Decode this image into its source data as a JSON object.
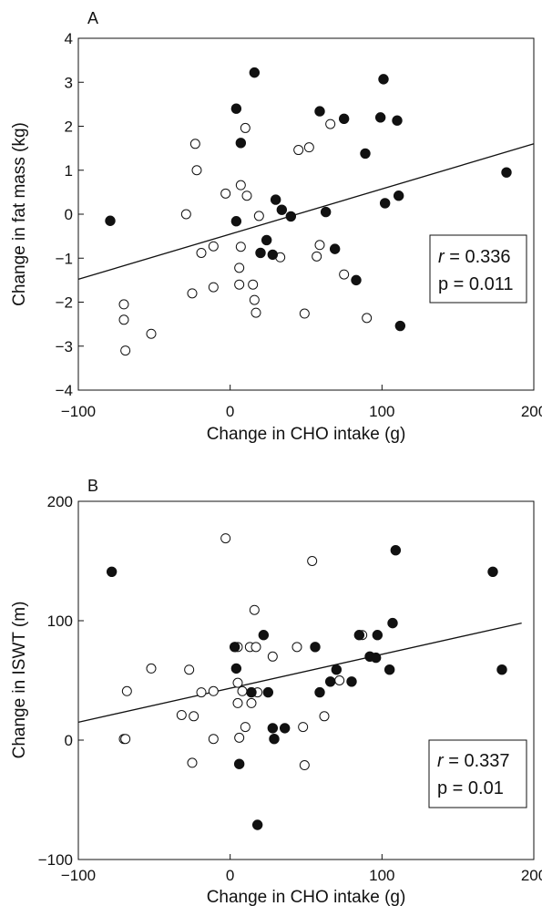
{
  "chart_data": [
    {
      "panel": "A",
      "type": "scatter",
      "xlabel": "Change in CHO intake (g)",
      "ylabel": "Change in fat mass (kg)",
      "xlim": [
        -100,
        200
      ],
      "ylim": [
        -4,
        4
      ],
      "xticks": [
        -100,
        0,
        100,
        200
      ],
      "yticks": [
        -4,
        -3,
        -2,
        -1,
        0,
        1,
        2,
        3,
        4
      ],
      "stats": {
        "r_label": "r",
        "r_text": " = 0.336",
        "p_text": "p = 0.011"
      },
      "regression_line": {
        "x": [
          -100,
          200
        ],
        "y": [
          -1.48,
          1.6
        ]
      },
      "open_points": [
        [
          -70,
          -2.05
        ],
        [
          -70,
          -2.4
        ],
        [
          -69,
          -3.1
        ],
        [
          -52,
          -2.72
        ],
        [
          -29,
          0.0
        ],
        [
          -25,
          -1.8
        ],
        [
          -23,
          1.6
        ],
        [
          -22,
          1.0
        ],
        [
          -19,
          -0.88
        ],
        [
          -11,
          -0.73
        ],
        [
          -11,
          -1.66
        ],
        [
          -3,
          0.47
        ],
        [
          6,
          -1.22
        ],
        [
          6,
          -1.6
        ],
        [
          7,
          0.66
        ],
        [
          7,
          -0.74
        ],
        [
          10,
          1.96
        ],
        [
          11,
          0.42
        ],
        [
          15,
          -1.6
        ],
        [
          16,
          -1.95
        ],
        [
          17,
          -2.24
        ],
        [
          19,
          -0.04
        ],
        [
          33,
          -0.98
        ],
        [
          45,
          1.46
        ],
        [
          49,
          -2.26
        ],
        [
          52,
          1.52
        ],
        [
          57,
          -0.96
        ],
        [
          59,
          -0.7
        ],
        [
          66,
          2.05
        ],
        [
          75,
          -1.37
        ],
        [
          90,
          -2.36
        ]
      ],
      "filled_points": [
        [
          -79,
          -0.15
        ],
        [
          4,
          2.4
        ],
        [
          4,
          -0.16
        ],
        [
          7,
          1.62
        ],
        [
          16,
          3.22
        ],
        [
          20,
          -0.88
        ],
        [
          24,
          -0.59
        ],
        [
          28,
          -0.92
        ],
        [
          30,
          0.33
        ],
        [
          34,
          0.1
        ],
        [
          40,
          -0.05
        ],
        [
          59,
          2.34
        ],
        [
          63,
          0.05
        ],
        [
          69,
          -0.79
        ],
        [
          75,
          2.17
        ],
        [
          83,
          -1.5
        ],
        [
          89,
          1.38
        ],
        [
          99,
          2.2
        ],
        [
          101,
          3.07
        ],
        [
          102,
          0.25
        ],
        [
          110,
          2.13
        ],
        [
          111,
          0.42
        ],
        [
          112,
          -2.54
        ],
        [
          182,
          0.95
        ]
      ]
    },
    {
      "panel": "B",
      "type": "scatter",
      "xlabel": "Change in CHO intake (g)",
      "ylabel": "Change in ISWT (m)",
      "xlim": [
        -100,
        200
      ],
      "ylim": [
        -100,
        200
      ],
      "xticks": [
        -100,
        0,
        100,
        200
      ],
      "yticks": [
        -100,
        0,
        100,
        200
      ],
      "stats": {
        "r_label": "r",
        "r_text": " = 0.337",
        "p_text": "p = 0.01"
      },
      "regression_line": {
        "x": [
          -100,
          192
        ],
        "y": [
          15,
          98
        ]
      },
      "open_points": [
        [
          -70,
          1
        ],
        [
          -69,
          1
        ],
        [
          -68,
          41
        ],
        [
          -52,
          60
        ],
        [
          -32,
          21
        ],
        [
          -27,
          59
        ],
        [
          -25,
          -19
        ],
        [
          -24,
          20
        ],
        [
          -19,
          40
        ],
        [
          -11,
          1
        ],
        [
          -11,
          41
        ],
        [
          -3,
          169
        ],
        [
          5,
          78
        ],
        [
          5,
          48
        ],
        [
          5,
          31
        ],
        [
          6,
          2
        ],
        [
          8,
          41
        ],
        [
          10,
          11
        ],
        [
          13,
          78
        ],
        [
          14,
          31
        ],
        [
          16,
          109
        ],
        [
          17,
          78
        ],
        [
          18,
          40
        ],
        [
          28,
          70
        ],
        [
          44,
          78
        ],
        [
          48,
          11
        ],
        [
          49,
          -21
        ],
        [
          54,
          150
        ],
        [
          62,
          20
        ],
        [
          72,
          50
        ],
        [
          87,
          88
        ]
      ],
      "filled_points": [
        [
          -78,
          141
        ],
        [
          3,
          78
        ],
        [
          4,
          60
        ],
        [
          6,
          -20
        ],
        [
          14,
          40
        ],
        [
          18,
          -71
        ],
        [
          22,
          88
        ],
        [
          25,
          40
        ],
        [
          28,
          10
        ],
        [
          29,
          1
        ],
        [
          36,
          10
        ],
        [
          56,
          78
        ],
        [
          59,
          40
        ],
        [
          66,
          49
        ],
        [
          70,
          59
        ],
        [
          80,
          49
        ],
        [
          85,
          88
        ],
        [
          92,
          70
        ],
        [
          96,
          69
        ],
        [
          97,
          88
        ],
        [
          105,
          59
        ],
        [
          107,
          98
        ],
        [
          109,
          159
        ],
        [
          173,
          141
        ],
        [
          179,
          59
        ]
      ]
    }
  ]
}
